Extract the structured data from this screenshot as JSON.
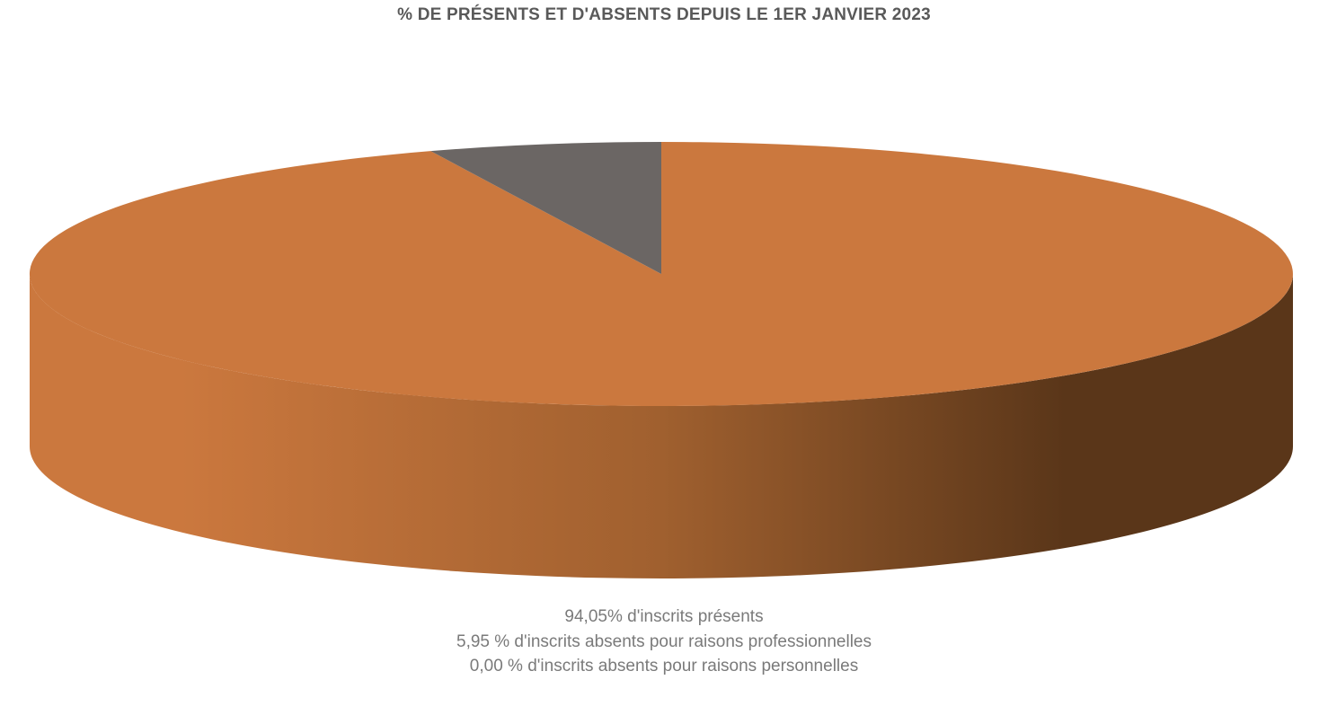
{
  "chart_data": {
    "type": "pie",
    "title": "% DE PRÉSENTS ET D'ABSENTS DEPUIS LE 1ER JANVIER 2023",
    "slices": [
      {
        "value": 94.05,
        "color": "#CB783E",
        "legend": "94,05% d'inscrits présents"
      },
      {
        "value": 5.95,
        "color": "#6B6664",
        "legend": "5,95 % d'inscrits absents pour raisons professionnelles"
      },
      {
        "value": 0.0,
        "color": "#A5A5A5",
        "legend": "0,00 % d'inscrits absents pour raisons personnelles"
      }
    ],
    "legend_position": "bottom",
    "style": "3d-pie"
  }
}
